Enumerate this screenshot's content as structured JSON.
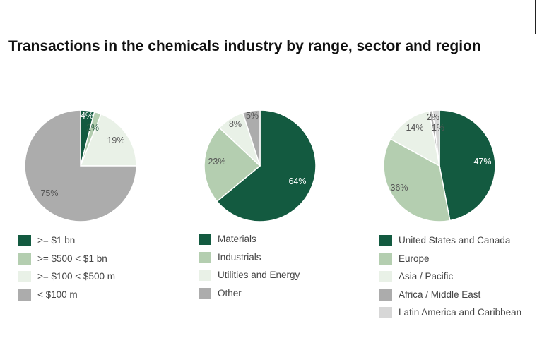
{
  "title": "Transactions in the chemicals industry by range, sector and region",
  "colors": {
    "dark_green": "#135a40",
    "light_green": "#b4ceb0",
    "pale_green": "#e9f1e7",
    "gray": "#acacac",
    "light_gray": "#d7d7d7"
  },
  "chart_data": [
    {
      "type": "pie",
      "title": "",
      "categories": [
        ">= $1 bn",
        ">= $500 < $1 bn",
        ">= $100 < $500 m",
        "< $100 m"
      ],
      "values": [
        4,
        2,
        19,
        75
      ],
      "labels": [
        "4%",
        "2%",
        "19%",
        "75%"
      ],
      "colors": [
        "#135a40",
        "#b4ceb0",
        "#e9f1e7",
        "#acacac"
      ],
      "legend_position": "bottom"
    },
    {
      "type": "pie",
      "title": "",
      "categories": [
        "Materials",
        "Industrials",
        "Utilities and Energy",
        "Other"
      ],
      "values": [
        64,
        23,
        8,
        5
      ],
      "labels": [
        "64%",
        "23%",
        "8%",
        "5%"
      ],
      "colors": [
        "#135a40",
        "#b4ceb0",
        "#e9f1e7",
        "#acacac"
      ],
      "legend_position": "bottom"
    },
    {
      "type": "pie",
      "title": "",
      "categories": [
        "United States and Canada",
        "Europe",
        "Asia / Pacific",
        "Africa / Middle East",
        "Latin America and Caribbean"
      ],
      "values": [
        47,
        36,
        14,
        1,
        2
      ],
      "labels": [
        "47%",
        "36%",
        "14%",
        "1%",
        "2%"
      ],
      "colors": [
        "#135a40",
        "#b4ceb0",
        "#e9f1e7",
        "#acacac",
        "#d7d7d7"
      ],
      "legend_position": "bottom"
    }
  ]
}
